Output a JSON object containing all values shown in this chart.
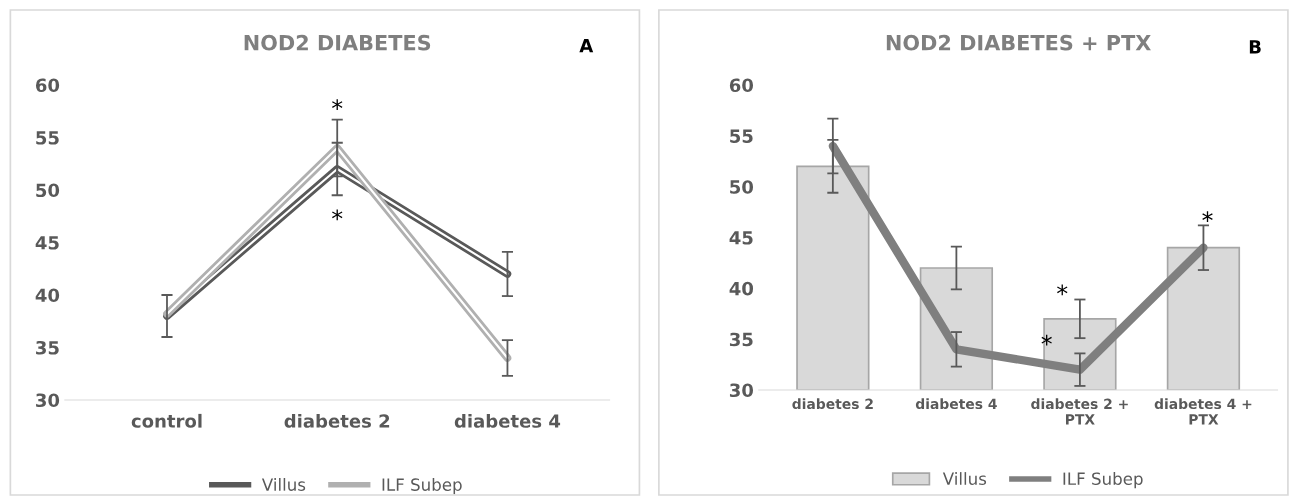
{
  "chart_data": [
    {
      "type": "line",
      "title": "NOD2 DIABETES",
      "categories": [
        "control",
        "diabetes 2",
        "diabetes 4"
      ],
      "series": [
        {
          "name": "Villus",
          "color": "#595959",
          "values": [
            38,
            52,
            42
          ],
          "errors": [
            2,
            2.5,
            2.1
          ]
        },
        {
          "name": "ILF Subep",
          "color": "#b0b0b0",
          "values": [
            38.2,
            54,
            34
          ],
          "errors": [
            null,
            2.7,
            1.7
          ]
        }
      ],
      "ylim": [
        30,
        60
      ],
      "yticks": [
        30,
        35,
        40,
        45,
        50,
        55,
        60
      ],
      "grid": false,
      "legend": "bottom",
      "marker": "none",
      "line_style": "solid",
      "annotations": [
        "*",
        "*",
        "A"
      ]
    },
    {
      "type": "bar",
      "title": "NOD2 DIABETES + PTX",
      "categories": [
        "diabetes 2",
        "diabetes 4",
        "diabetes 2 +\nPTX",
        "diabetes 4 +\nPTX"
      ],
      "series": [
        {
          "name": "Villus",
          "color": "#d9d9d9",
          "values": [
            52,
            42,
            37,
            44
          ],
          "errors": [
            2.6,
            2.1,
            1.9,
            null
          ]
        },
        {
          "name": "ILF Subep",
          "type": "line",
          "color": "#7f7f7f",
          "values": [
            54,
            34,
            32,
            44
          ],
          "errors": [
            2.7,
            1.7,
            1.6,
            2.2
          ]
        }
      ],
      "ylim": [
        30,
        60
      ],
      "yticks": [
        30,
        35,
        40,
        45,
        50,
        55,
        60
      ],
      "grid": false,
      "legend": "bottom",
      "marker": "none",
      "line_style": "solid",
      "annotations": [
        "*",
        "*",
        "*",
        "B"
      ]
    }
  ]
}
